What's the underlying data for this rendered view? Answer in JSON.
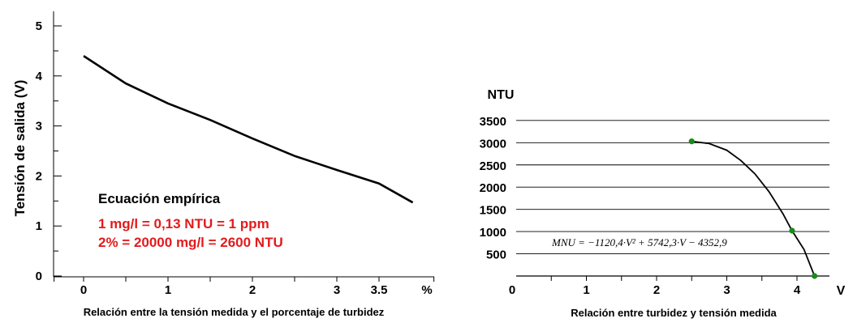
{
  "chart_data": [
    {
      "type": "line",
      "title": "",
      "xlabel": "Relación entre la tensión medida y el porcentaje de turbidez",
      "ylabel": "Tensión de salida (V)",
      "x_unit": "%",
      "x_ticks": [
        "0",
        "1",
        "2",
        "3",
        "3.5"
      ],
      "y_ticks": [
        "0",
        "1",
        "2",
        "3",
        "4",
        "5"
      ],
      "xlim": [
        -0.35,
        4.15
      ],
      "ylim": [
        0,
        5.3
      ],
      "grid": false,
      "series": [
        {
          "x": [
            0,
            0.5,
            1.0,
            1.5,
            2.0,
            2.5,
            3.0,
            3.5,
            3.9
          ],
          "y": [
            4.4,
            3.85,
            3.45,
            3.12,
            2.75,
            2.4,
            2.12,
            1.85,
            1.47
          ]
        }
      ],
      "annotation": {
        "title": "Ecuación empírica",
        "line1": "1 mg/l = 0,13 NTU = 1 ppm",
        "line2": "2% = 20000 mg/l = 2600 NTU"
      }
    },
    {
      "type": "line",
      "title": "",
      "xlabel": "Relación entre turbidez y tensión medida",
      "ylabel": "NTU",
      "x_unit": "V",
      "x_ticks": [
        "0",
        "1",
        "2",
        "3",
        "4"
      ],
      "y_ticks": [
        "500",
        "1000",
        "1500",
        "2000",
        "2500",
        "3000",
        "3500"
      ],
      "xlim": [
        0,
        4.6
      ],
      "ylim": [
        0,
        3500
      ],
      "grid": true,
      "series": [
        {
          "x": [
            2.5,
            2.75,
            3.0,
            3.2,
            3.4,
            3.6,
            3.8,
            3.93,
            4.1,
            4.25
          ],
          "y": [
            3030,
            2980,
            2830,
            2600,
            2300,
            1900,
            1400,
            1020,
            600,
            0
          ]
        }
      ],
      "points": {
        "x": [
          2.5,
          3.93,
          4.25
        ],
        "y": [
          3030,
          1020,
          0
        ],
        "color": "#1a8a1a"
      },
      "formula": "MNU = −1120,4·V² + 5742,3·V − 4352,9"
    }
  ]
}
